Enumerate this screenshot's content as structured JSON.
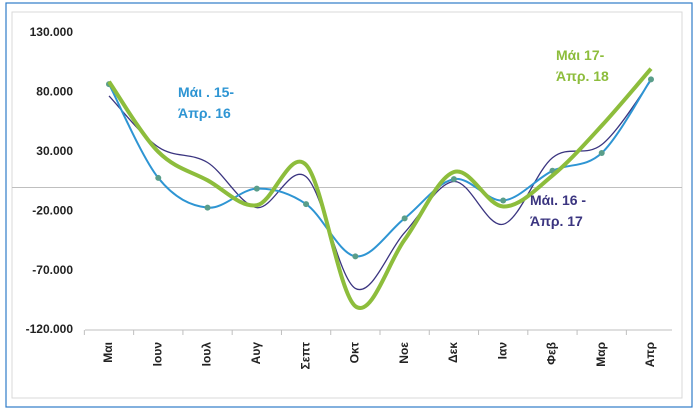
{
  "chart_data": {
    "type": "line",
    "categories": [
      "Μαι",
      "Ιουν",
      "Ιουλ",
      "Αυγ",
      "Σεπτ",
      "Οκτ",
      "Νοε",
      "Δεκ",
      "Ιαν",
      "Φεβ",
      "Μαρ",
      "Απρ"
    ],
    "series": [
      {
        "name": "Μάι . 15-\nΆπρ. 16",
        "color": "#2e95d3",
        "markers": true,
        "values": [
          87000,
          8000,
          -17000,
          -1000,
          -14000,
          -58000,
          -26000,
          7000,
          -11000,
          14000,
          29000,
          91000
        ]
      },
      {
        "name": "Μάι. 16 -\nΆπρ. 17",
        "color": "#3b3580",
        "markers": false,
        "values": [
          77000,
          34000,
          21000,
          -17000,
          9000,
          -85000,
          -38000,
          5000,
          -31000,
          25000,
          36000,
          90000
        ]
      },
      {
        "name": "Μάι 17-\nΆπρ. 18",
        "color": "#8dbd3c",
        "markers": false,
        "values": [
          89000,
          30000,
          6000,
          -15000,
          19000,
          -100000,
          -44000,
          13000,
          -16000,
          10000,
          52000,
          100000
        ]
      }
    ],
    "ylim": [
      -120000,
      130000
    ],
    "yticks": [
      {
        "value": -120000,
        "label": "-120.000"
      },
      {
        "value": -70000,
        "label": "-70.000"
      },
      {
        "value": -20000,
        "label": "-20.000"
      },
      {
        "value": 30000,
        "label": "30.000"
      },
      {
        "value": 80000,
        "label": "80.000"
      },
      {
        "value": 130000,
        "label": "130.000"
      }
    ],
    "grid": false
  }
}
